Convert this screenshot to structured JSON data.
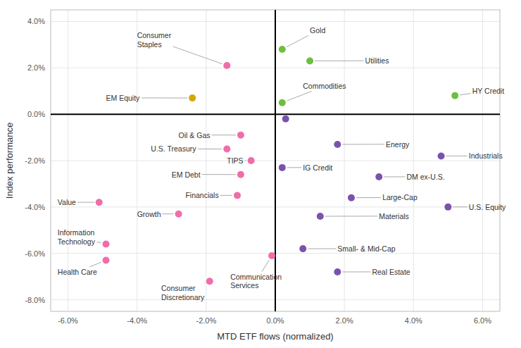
{
  "chart_data": {
    "type": "scatter",
    "x_label": "MTD ETF flows (normalized)",
    "y_label": "Index performance",
    "xlim": [
      -0.065,
      0.065
    ],
    "ylim": [
      -0.085,
      0.045
    ],
    "xticks": [
      {
        "value": -0.06,
        "label": "-6.0%"
      },
      {
        "value": -0.04,
        "label": "-4.0%"
      },
      {
        "value": -0.02,
        "label": "-2.0%"
      },
      {
        "value": 0.0,
        "label": "0.0%"
      },
      {
        "value": 0.02,
        "label": "2.0%"
      },
      {
        "value": 0.04,
        "label": "4.0%"
      },
      {
        "value": 0.06,
        "label": "6.0%"
      }
    ],
    "yticks": [
      {
        "value": -0.08,
        "label": "-8.0%"
      },
      {
        "value": -0.06,
        "label": "-6.0%"
      },
      {
        "value": -0.04,
        "label": "-4.0%"
      },
      {
        "value": -0.02,
        "label": "-2.0%"
      },
      {
        "value": 0.0,
        "label": "0.0%"
      },
      {
        "value": 0.02,
        "label": "2.0%"
      },
      {
        "value": 0.04,
        "label": "4.0%"
      }
    ],
    "grid": true,
    "x": [
      0.002,
      0.01,
      0.002,
      0.052,
      -0.014,
      -0.024,
      -0.01,
      -0.014,
      -0.007,
      -0.01,
      -0.051,
      -0.011,
      -0.049,
      -0.028,
      -0.049,
      -0.019,
      -0.001,
      0.018,
      0.048,
      0.03,
      0.022,
      0.002,
      0.013,
      0.05,
      0.008,
      0.018,
      0.003
    ],
    "values": [
      0.028,
      0.023,
      0.005,
      0.008,
      0.021,
      0.007,
      -0.009,
      -0.015,
      -0.02,
      -0.026,
      -0.038,
      -0.035,
      -0.056,
      -0.043,
      -0.063,
      -0.072,
      -0.061,
      -0.013,
      -0.018,
      -0.027,
      -0.036,
      -0.023,
      -0.044,
      -0.04,
      -0.058,
      -0.068,
      -0.002
    ],
    "colors": [
      "#6dbf3e",
      "#6dbf3e",
      "#6dbf3e",
      "#6dbf3e",
      "#f06caa",
      "#d4a800",
      "#f06caa",
      "#f06caa",
      "#f06caa",
      "#f06caa",
      "#f06caa",
      "#f06caa",
      "#f06caa",
      "#f06caa",
      "#f06caa",
      "#f06caa",
      "#f06caa",
      "#7b52ab",
      "#7b52ab",
      "#7b52ab",
      "#7b52ab",
      "#7b52ab",
      "#7b52ab",
      "#7b52ab",
      "#7b52ab",
      "#7b52ab",
      "#7b52ab"
    ],
    "annotations": [
      {
        "text": "Gold",
        "x": 0.01,
        "y": 0.036
      },
      {
        "text": "Utilities",
        "x": 0.026,
        "y": 0.023
      },
      {
        "text": "Commodities",
        "x": 0.008,
        "y": 0.012
      },
      {
        "text": "HY Credit",
        "x": 0.057,
        "y": 0.01
      },
      {
        "text": "Consumer\nStaples",
        "x": -0.04,
        "y": 0.032
      },
      {
        "text": "EM Equity",
        "x": -0.049,
        "y": 0.007
      },
      {
        "text": "Oil & Gas",
        "x": -0.028,
        "y": -0.009
      },
      {
        "text": "U.S. Treasury",
        "x": -0.036,
        "y": -0.015
      },
      {
        "text": "TIPS",
        "x": -0.014,
        "y": -0.02
      },
      {
        "text": "EM Debt",
        "x": -0.03,
        "y": -0.026
      },
      {
        "text": "Value",
        "x": -0.063,
        "y": -0.038
      },
      {
        "text": "Financials",
        "x": -0.026,
        "y": -0.035
      },
      {
        "text": "Information\nTechnology",
        "x": -0.063,
        "y": -0.053
      },
      {
        "text": "Growth",
        "x": -0.04,
        "y": -0.043
      },
      {
        "text": "Health Care",
        "x": -0.063,
        "y": -0.068
      },
      {
        "text": "Consumer\nDiscretionary",
        "x": -0.033,
        "y": -0.077
      },
      {
        "text": "Communication\nServices",
        "x": -0.013,
        "y": -0.072
      },
      {
        "text": "Energy",
        "x": 0.032,
        "y": -0.013
      },
      {
        "text": "Industrials",
        "x": 0.056,
        "y": -0.018
      },
      {
        "text": "DM ex-U.S.",
        "x": 0.038,
        "y": -0.027
      },
      {
        "text": "Large-Cap",
        "x": 0.031,
        "y": -0.036
      },
      {
        "text": "IG Credit",
        "x": 0.008,
        "y": -0.023
      },
      {
        "text": "Materials",
        "x": 0.03,
        "y": -0.044
      },
      {
        "text": "U.S. Equity",
        "x": 0.056,
        "y": -0.04
      },
      {
        "text": "Small- & Mid-Cap",
        "x": 0.018,
        "y": -0.058
      },
      {
        "text": "Real Estate",
        "x": 0.028,
        "y": -0.068
      },
      null
    ]
  }
}
